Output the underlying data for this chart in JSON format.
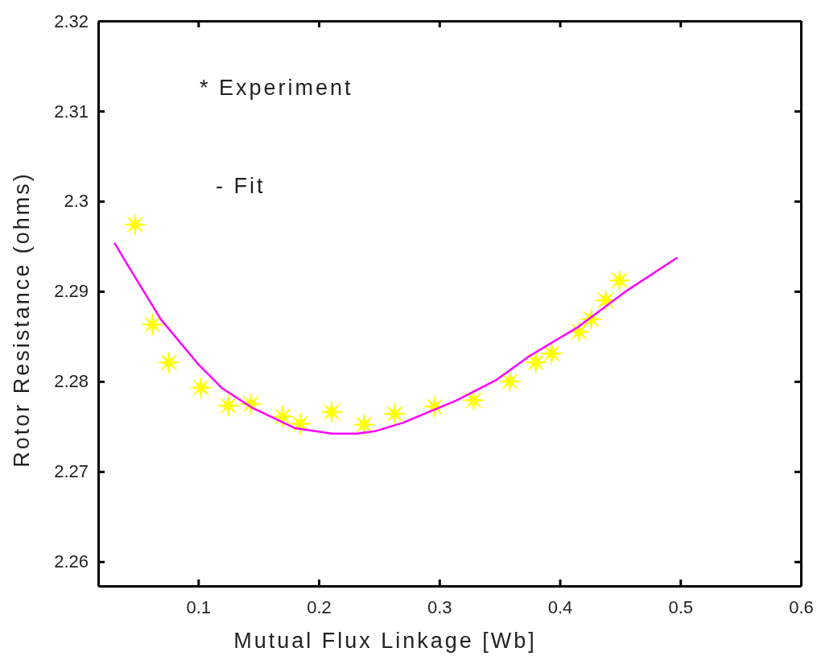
{
  "chart_data": {
    "type": "scatter",
    "xlabel": "Mutual Flux Linkage [Wb]",
    "ylabel": "Rotor Resistance (ohms)",
    "xlim": [
      0.017,
      0.6
    ],
    "ylim": [
      2.2573,
      2.32
    ],
    "xticks": [
      0.1,
      0.2,
      0.3,
      0.4,
      0.5,
      0.6
    ],
    "yticks": [
      2.26,
      2.27,
      2.28,
      2.29,
      {
        "value": 2.3,
        "label": "2.3"
      },
      2.31,
      2.32
    ],
    "grid": false,
    "annotations": [
      "* Experiment",
      "- Fit"
    ],
    "series": [
      {
        "marker": "star",
        "color": "#ffff00",
        "x": [
          0.0475,
          0.062,
          0.0756,
          0.1023,
          0.125,
          0.1438,
          0.17,
          0.1846,
          0.2107,
          0.2375,
          0.263,
          0.296,
          0.3284,
          0.3585,
          0.38,
          0.3933,
          0.416,
          0.426,
          0.438,
          0.4495
        ],
        "values": [
          2.2974,
          2.2863,
          2.2821,
          2.2793,
          2.2773,
          2.2775,
          2.2761,
          2.2753,
          2.2766,
          2.2752,
          2.2764,
          2.2772,
          2.2779,
          2.28,
          2.2821,
          2.2831,
          2.2855,
          2.2869,
          2.289,
          2.2912
        ]
      },
      {
        "type": "line",
        "marker": "none",
        "line_style": "solid",
        "color": "#ff00ff",
        "x": [
          0.0308,
          0.0415,
          0.0689,
          0.1,
          0.1202,
          0.1444,
          0.1805,
          0.2113,
          0.2314,
          0.2475,
          0.2696,
          0.3144,
          0.3478,
          0.3746,
          0.4147,
          0.4548,
          0.497
        ],
        "values": [
          2.2953,
          2.2929,
          2.2869,
          2.2819,
          2.2792,
          2.2771,
          2.2748,
          2.2742,
          2.2742,
          2.2745,
          2.2754,
          2.2779,
          2.2802,
          2.2828,
          2.286,
          2.29,
          2.2937
        ]
      }
    ]
  }
}
